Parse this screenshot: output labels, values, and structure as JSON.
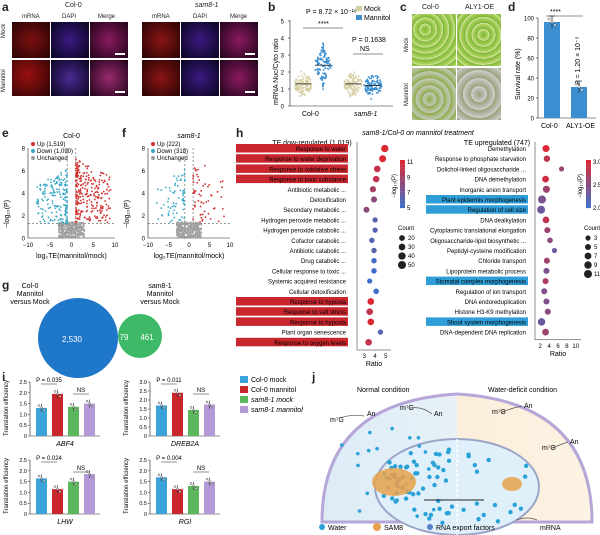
{
  "colors": {
    "mock": "#d6cfa3",
    "mannitol": "#3b8fd1",
    "up": "#d0302f",
    "down": "#3aa9c8",
    "unch": "#9e9e9e",
    "bar_col_mock": "#3ba3d9",
    "bar_col_mann": "#c8272d",
    "bar_sam_mock": "#5cb85c",
    "bar_sam_mann": "#b39ad6",
    "green": "#27ae60"
  },
  "panel_a": {
    "label": "a",
    "genotype1": "Col-0",
    "genotype2": "sam8-1",
    "channels": [
      "mRNA",
      "DAPI",
      "Merge",
      "mRNA",
      "DAPI",
      "Merge"
    ],
    "rows": [
      "Mock",
      "Mannitol"
    ]
  },
  "panel_b": {
    "label": "b",
    "pval_top": "P = 8.72 × 10⁻¹⁶",
    "stars": "****",
    "pval_ns": "P = 0.1638",
    "ns": "NS",
    "legend": [
      "Mock",
      "Mannitol"
    ],
    "ylabel": "mRNA Nuc/Cyto ratio",
    "xticks": [
      "Col-0",
      "sam8-1"
    ],
    "yticks": [
      "0",
      "1",
      "2",
      "3",
      "4",
      "5"
    ]
  },
  "panel_c": {
    "label": "c",
    "cols": [
      "Col-0",
      "ALY1-OE"
    ],
    "rows": [
      "Mock",
      "Mannitol"
    ]
  },
  "panel_d": {
    "label": "d",
    "ylabel": "Survival rate (%)",
    "stars": "****",
    "pval": "P = 1.20 × 10⁻⁵",
    "xticks": [
      "Col-0",
      "ALY1-OE"
    ],
    "yticks": [
      "0",
      "20",
      "40",
      "60",
      "80",
      "100"
    ],
    "values": [
      96,
      31
    ]
  },
  "panel_e": {
    "label": "e",
    "title": "Col-0",
    "legend": [
      "Up (1,519)",
      "Down (1,090)",
      "Unchanged"
    ],
    "ylabel": "−log₁₀(P)",
    "xlabel": "log₂TE(mannitol/mock)",
    "xticks": [
      "−10",
      "−5",
      "0",
      "5",
      "10"
    ],
    "yticks": [
      "0",
      "2",
      "4",
      "6",
      "8"
    ]
  },
  "panel_f": {
    "label": "f",
    "title": "sam8-1",
    "legend": [
      "Up (222)",
      "Down (318)",
      "Unchanged"
    ],
    "ylabel": "−log₁₀(P)",
    "xlabel": "log₂TE(mannitol/mock)",
    "xticks": [
      "−10",
      "−5",
      "0",
      "5",
      "10"
    ],
    "yticks": [
      "0",
      "2",
      "4",
      "6",
      "8"
    ]
  },
  "panel_g": {
    "label": "g",
    "set1": "Col-0\nMannitol\nversus Mock",
    "set2": "sam8-1\nMannitol\nversus Mock",
    "only1": "2,530",
    "both": "79",
    "only2": "461"
  },
  "panel_h": {
    "label": "h",
    "title": "sam8-1/Col-0 on mannitol treatment",
    "left": {
      "title": "TE dow-regulated (1,019)",
      "xlabel": "Ratio",
      "xticks": [
        "3",
        "4",
        "5"
      ],
      "terms": [
        "Response to water",
        "Response to water deprivation",
        "Response to oxidative stress",
        "Response to toxic substance",
        "Antibiotic metabolic ...",
        "Detoxification",
        "Secondary metabolic ...",
        "Hydrogen peroxide metabolic ...",
        "Hydrogen peroxide catabolic ...",
        "Cofactor catabolic ...",
        "Antibiotic catabolic ...",
        "Drug catabolic ...",
        "Cellular response to toxic ...",
        "Systemic acquired resistance",
        "Cellular detoxification",
        "Response to hypoxia",
        "Response to salt stress",
        "Response to hypoxia",
        "Plant organ senescence",
        "Response to oxygen levels"
      ],
      "highlight": [
        0,
        1,
        2,
        3,
        15,
        16,
        17,
        19
      ],
      "ratio": [
        4.9,
        4.7,
        4.2,
        4.1,
        3.8,
        3.9,
        3.2,
        4.0,
        4.0,
        3.7,
        3.9,
        3.9,
        3.9,
        3.5,
        4.1,
        3.6,
        3.5,
        3.6,
        4.5,
        3.4
      ],
      "count": [
        40,
        35,
        30,
        28,
        25,
        24,
        22,
        15,
        15,
        16,
        16,
        16,
        17,
        14,
        18,
        30,
        30,
        30,
        15,
        30
      ],
      "p": [
        9,
        9,
        8,
        8,
        7,
        6,
        6,
        4,
        4,
        4,
        4,
        3,
        3,
        3,
        3,
        9,
        8,
        9,
        4,
        8
      ],
      "cbar_title": "−log₁₀(P)",
      "cbar_ticks": [
        "11",
        "9",
        "7",
        "5"
      ],
      "size_title": "Count",
      "size_ticks": [
        "20",
        "30",
        "40",
        "50"
      ]
    },
    "right": {
      "title": "TE upregulated (747)",
      "xlabel": "Ratio",
      "xticks": [
        "2",
        "4",
        "6",
        "8",
        "10"
      ],
      "terms": [
        "Demethylation",
        "Response to phosphate starvation",
        "Dolichol-linked oligosaccharide ...",
        "DNA demethylation",
        "Inorganic anion transport",
        "Plant epidermis morphogenesis",
        "Regulation of cell size",
        "DNA dealkylation",
        "Cytoplasmic translational elongation",
        "Oligosaccharide-lipid biosynthetic ...",
        "Peptidyl-cysteine modification",
        "Chloride transport",
        "Lipoprotein metabolic process",
        "Stomatal complex morphogenesis",
        "Regulation of ion transport",
        "DNA endoreduplication",
        "Histone H3-K9 methylation",
        "Shoot system morphogenesis",
        "DNA-dependent DNA replication"
      ],
      "highlight": [
        5,
        6,
        13,
        17
      ],
      "ratio": [
        3.3,
        3.5,
        6.8,
        3.2,
        3.4,
        2.4,
        2.2,
        3.3,
        3.6,
        4.2,
        5.2,
        3.5,
        3.4,
        3.2,
        2.9,
        3.4,
        3.7,
        2.3,
        3.2
      ],
      "count": [
        8,
        6,
        3,
        7,
        8,
        11,
        11,
        7,
        5,
        4,
        3,
        5,
        5,
        5,
        5,
        5,
        5,
        9,
        7
      ],
      "p": [
        3.0,
        2.8,
        2.6,
        2.9,
        2.6,
        2.4,
        2.3,
        2.8,
        2.6,
        2.5,
        2.3,
        2.6,
        2.4,
        2.7,
        2.4,
        2.4,
        2.5,
        2.3,
        2.6
      ],
      "cbar_title": "−log₁₀(P)",
      "cbar_ticks": [
        "3.0",
        "2.5",
        "2.0"
      ],
      "size_title": "Count",
      "size_ticks": [
        "3",
        "5",
        "7",
        "9",
        "11"
      ]
    }
  },
  "panel_i": {
    "label": "i",
    "ylabel": "Translation efficiency",
    "legend": [
      "Col-0 mock",
      "Col-0 mannitol",
      "sam8-1 mock",
      "sam8-1 mannitol"
    ],
    "plots": [
      {
        "gene": "ABF4",
        "p": "P = 0.035",
        "ns": "NS",
        "yticks": [
          "0",
          "0.5",
          "1.0",
          "1.5",
          "2.0",
          "2.5"
        ],
        "ymax": 2.5,
        "values": [
          1.3,
          1.95,
          1.35,
          1.5
        ]
      },
      {
        "gene": "DREB2A",
        "p": "P = 0.011",
        "ns": "NS",
        "yticks": [
          "0",
          "0.5",
          "1.0",
          "1.5",
          "2.0",
          "2.5",
          "3.0"
        ],
        "ymax": 3.0,
        "values": [
          1.7,
          2.4,
          1.45,
          1.75
        ]
      },
      {
        "gene": "LHW",
        "p": "P = 0.024",
        "ns": "NS",
        "yticks": [
          "0",
          "0.5",
          "1.0",
          "1.5",
          "2.0",
          "2.5"
        ],
        "ymax": 2.5,
        "values": [
          1.65,
          1.15,
          1.5,
          1.85
        ]
      },
      {
        "gene": "RGI",
        "p": "P = 0.004",
        "ns": "NS",
        "yticks": [
          "0",
          "0.5",
          "1.0",
          "1.5",
          "2.0",
          "2.5"
        ],
        "ymax": 2.5,
        "values": [
          1.7,
          1.15,
          1.3,
          1.5
        ]
      }
    ]
  },
  "panel_j": {
    "label": "j",
    "normal": "Normal condition",
    "deficit": "Water-deficit condition",
    "cap": "m⁷G",
    "tail": "An",
    "legend": [
      "Water",
      "SAM8",
      "RNA export factors",
      "mRNA"
    ]
  }
}
